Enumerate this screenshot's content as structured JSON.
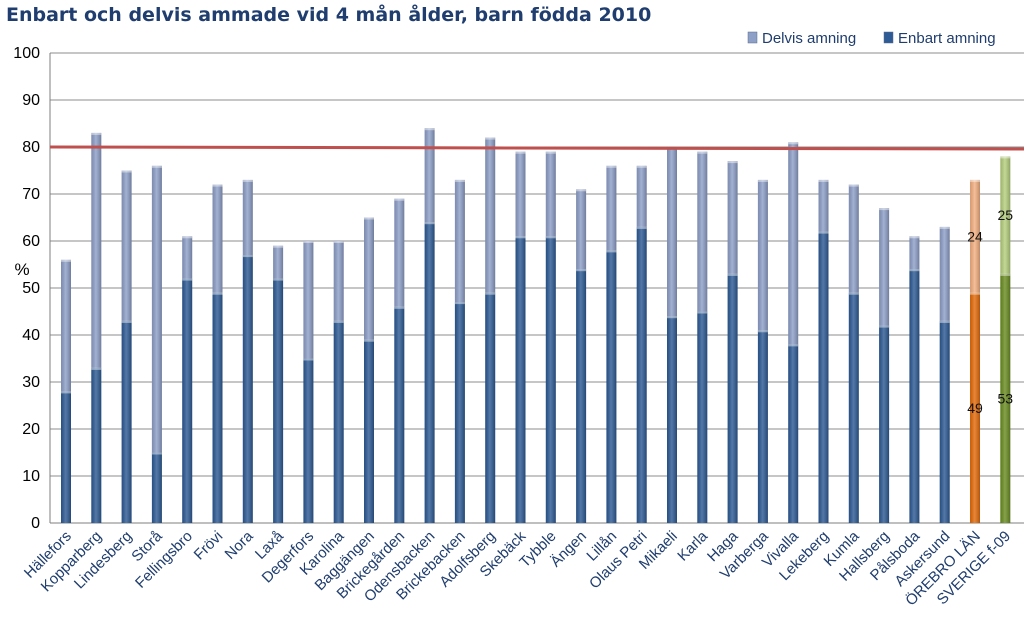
{
  "chart_data": {
    "type": "bar",
    "stacked": true,
    "title": "Enbart och delvis ammade vid 4 mån ålder, barn födda 2010",
    "ylabel": "%",
    "xlabel": "",
    "ylim": [
      0,
      100
    ],
    "yticks": [
      "0",
      "10",
      "20",
      "30",
      "40",
      "50",
      "60",
      "70",
      "80",
      "90",
      "100"
    ],
    "grid": true,
    "legend_position": "top-right",
    "reference_line": {
      "value": 80,
      "color": "#c0504d"
    },
    "categories": [
      "Hällefors",
      "Kopparberg",
      "Lindesberg",
      "Storå",
      "Fellingsbro",
      "Frövi",
      "Nora",
      "Laxå",
      "Degerfors",
      "Karolina",
      "Baggängen",
      "Brickegården",
      "Odensbacken",
      "Brickebacken",
      "Adolfsberg",
      "Skebäck",
      "Tybble",
      "Ängen",
      "Lillån",
      "Olaus Petri",
      "Mikaeli",
      "Karla",
      "Haga",
      "Varberga",
      "Vivalla",
      "Lekeberg",
      "Kumla",
      "Hallsberg",
      "Pålsboda",
      "Askersund",
      "ÖREBRO LÄN",
      "SVERIGE f-09"
    ],
    "series": [
      {
        "name": "Enbart amning",
        "color": "#2e5b95",
        "values": [
          28,
          33,
          43,
          15,
          52,
          49,
          57,
          52,
          35,
          43,
          39,
          46,
          64,
          47,
          49,
          61,
          61,
          54,
          58,
          63,
          44,
          45,
          53,
          41,
          38,
          62,
          49,
          42,
          54,
          43,
          49,
          53
        ]
      },
      {
        "name": "Delvis amning",
        "color": "#8e9fc8",
        "values": [
          28,
          50,
          32,
          61,
          9,
          23,
          16,
          7,
          25,
          17,
          26,
          23,
          20,
          26,
          33,
          18,
          18,
          17,
          18,
          13,
          36,
          34,
          24,
          32,
          43,
          11,
          23,
          25,
          7,
          20,
          24,
          25
        ]
      }
    ],
    "highlight_colors": {
      "ÖREBRO LÄN": {
        "Enbart amning": "#e46c0a",
        "Delvis amning": "#f4b183"
      },
      "SVERIGE f-09": {
        "Enbart amning": "#6b8e23",
        "Delvis amning": "#b6cf7f"
      }
    },
    "data_labels": [
      {
        "category": "ÖREBRO LÄN",
        "series": "Enbart amning",
        "text": "49"
      },
      {
        "category": "ÖREBRO LÄN",
        "series": "Delvis amning",
        "text": "24"
      },
      {
        "category": "SVERIGE f-09",
        "series": "Enbart amning",
        "text": "53"
      },
      {
        "category": "SVERIGE f-09",
        "series": "Delvis amning",
        "text": "25"
      }
    ]
  }
}
